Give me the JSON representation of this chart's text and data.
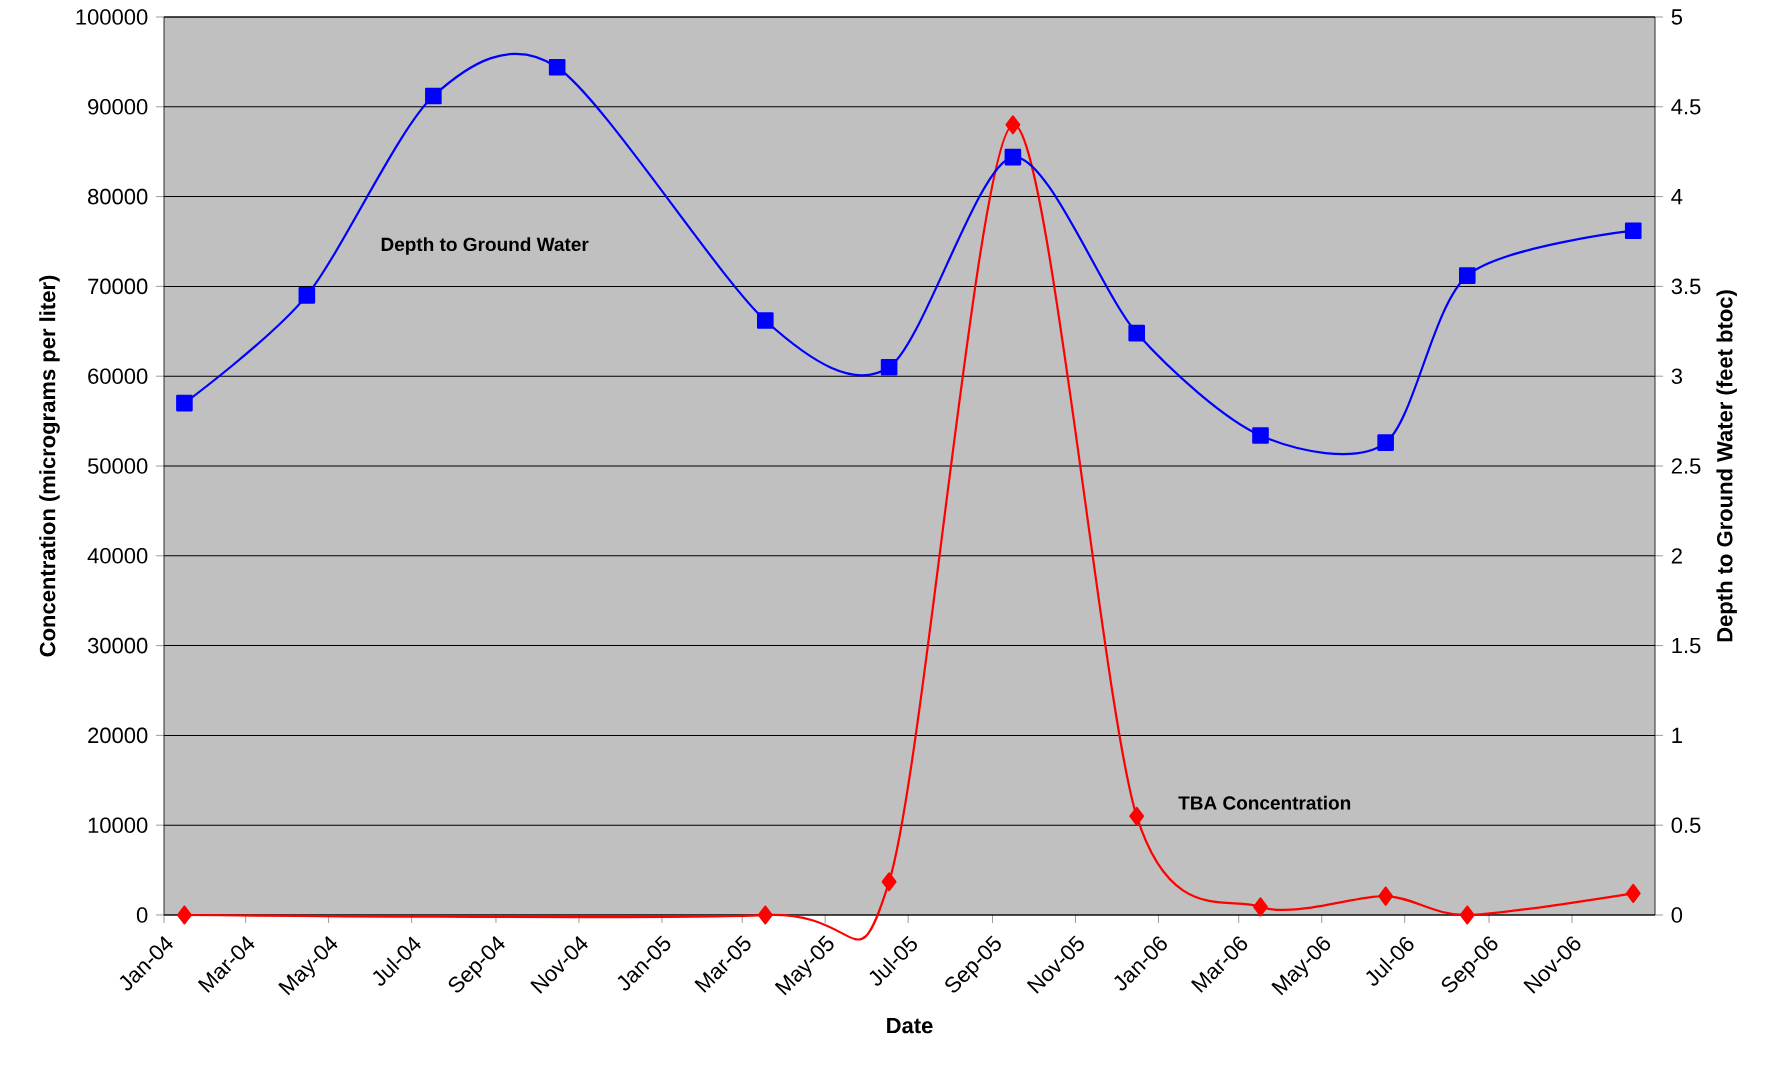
{
  "chart_data": {
    "type": "line",
    "xlabel": "Date",
    "ylabel": "Concentration (micrograms per liter)",
    "y2label": "Depth to Ground Water (feet btoc)",
    "xlim": [
      "2004-01-01",
      "2007-01-01"
    ],
    "xticks": [
      {
        "value": "2004-01-01",
        "label": "Jan-04"
      },
      {
        "value": "2004-03-01",
        "label": "Mar-04"
      },
      {
        "value": "2004-05-01",
        "label": "May-04"
      },
      {
        "value": "2004-07-01",
        "label": "Jul-04"
      },
      {
        "value": "2004-09-01",
        "label": "Sep-04"
      },
      {
        "value": "2004-11-01",
        "label": "Nov-04"
      },
      {
        "value": "2005-01-01",
        "label": "Jan-05"
      },
      {
        "value": "2005-03-01",
        "label": "Mar-05"
      },
      {
        "value": "2005-05-01",
        "label": "May-05"
      },
      {
        "value": "2005-07-01",
        "label": "Jul-05"
      },
      {
        "value": "2005-09-01",
        "label": "Sep-05"
      },
      {
        "value": "2005-11-01",
        "label": "Nov-05"
      },
      {
        "value": "2006-01-01",
        "label": "Jan-06"
      },
      {
        "value": "2006-03-01",
        "label": "Mar-06"
      },
      {
        "value": "2006-05-01",
        "label": "May-06"
      },
      {
        "value": "2006-07-01",
        "label": "Jul-06"
      },
      {
        "value": "2006-09-01",
        "label": "Sep-06"
      },
      {
        "value": "2006-11-01",
        "label": "Nov-06"
      }
    ],
    "ylim": [
      0,
      100000
    ],
    "yticks": [
      0,
      10000,
      20000,
      30000,
      40000,
      50000,
      60000,
      70000,
      80000,
      90000,
      100000
    ],
    "y2lim": [
      0,
      5
    ],
    "y2ticks": [
      0,
      0.5,
      1,
      1.5,
      2,
      2.5,
      3,
      3.5,
      4,
      4.5,
      5
    ],
    "grid": "y",
    "series": [
      {
        "name": "TBA Concentration",
        "color": "#ff0000",
        "marker": "diamond",
        "axis": "y",
        "x": [
          "2004-01-16",
          "2005-03-18",
          "2005-06-17",
          "2005-09-16",
          "2005-12-16",
          "2006-03-17",
          "2006-06-17",
          "2006-08-16",
          "2006-12-16"
        ],
        "values": [
          0,
          0,
          3700,
          88000,
          11000,
          900,
          2100,
          0,
          2400
        ]
      },
      {
        "name": "Depth to Ground Water",
        "color": "#0000ff",
        "marker": "square",
        "axis": "y2",
        "x": [
          "2004-01-16",
          "2004-04-15",
          "2004-07-17",
          "2004-10-16",
          "2005-03-18",
          "2005-06-17",
          "2005-09-16",
          "2005-12-16",
          "2006-03-17",
          "2006-06-17",
          "2006-08-16",
          "2006-12-16"
        ],
        "values": [
          2.85,
          3.45,
          4.56,
          4.72,
          3.31,
          3.05,
          4.22,
          3.24,
          2.67,
          2.63,
          3.56,
          3.81
        ]
      }
    ]
  }
}
